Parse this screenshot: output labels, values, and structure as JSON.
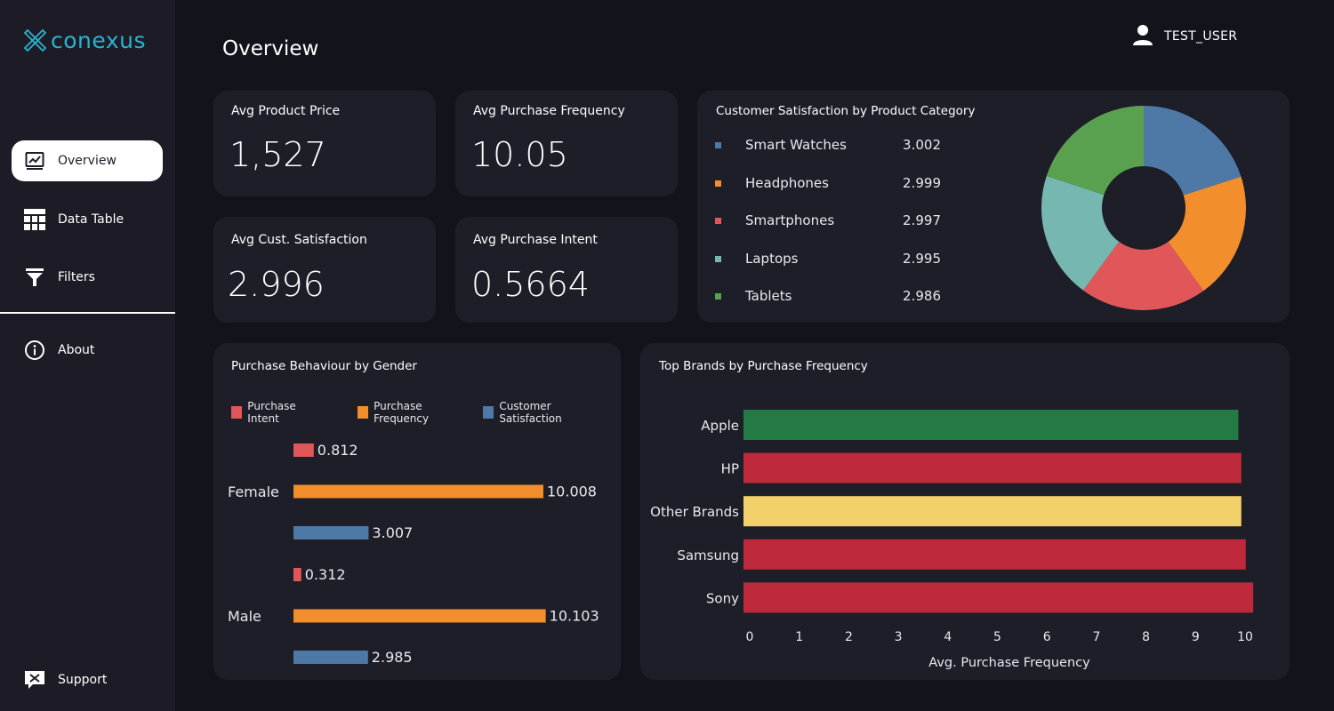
{
  "app": {
    "logo_text": "conexus",
    "user_name": "TEST_USER",
    "page_title": "Overview"
  },
  "sidebar": {
    "items": [
      {
        "label": "Overview",
        "icon": "overview-chart-icon",
        "active": true
      },
      {
        "label": "Data Table",
        "icon": "table-grid-icon",
        "active": false
      },
      {
        "label": "Filters",
        "icon": "funnel-icon",
        "active": false
      },
      {
        "label": "About",
        "icon": "info-icon",
        "active": false
      }
    ],
    "support_label": "Support"
  },
  "kpis": {
    "avg_price": {
      "label": "Avg Product Price",
      "value": "1,527"
    },
    "avg_freq": {
      "label": "Avg Purchase Frequency",
      "value": "10.05"
    },
    "avg_sat": {
      "label": "Avg Cust. Satisfaction",
      "value": "2.996"
    },
    "avg_intent": {
      "label": "Avg Purchase Intent",
      "value": "0.5664"
    }
  },
  "colors": {
    "blue": "#4e79a7",
    "orange": "#f28e2b",
    "red": "#e15759",
    "teal": "#76b7b2",
    "green": "#59a14f",
    "brand": "#2ab3cf"
  },
  "chart_data": [
    {
      "type": "pie",
      "title": "Customer Satisfaction by Product Category",
      "categories": [
        "Smart Watches",
        "Headphones",
        "Smartphones",
        "Laptops",
        "Tablets"
      ],
      "values": [
        3.002,
        2.999,
        2.997,
        2.995,
        2.986
      ],
      "value_labels": [
        "3.002",
        "2.999",
        "2.997",
        "2.995",
        "2.986"
      ],
      "colors": [
        "#4e79a7",
        "#f28e2b",
        "#e15759",
        "#76b7b2",
        "#59a14f"
      ],
      "donut": true,
      "legend": "left"
    },
    {
      "type": "bar",
      "orientation": "horizontal",
      "title": "Purchase Behaviour by Gender",
      "categories": [
        "Female",
        "Male"
      ],
      "series": [
        {
          "name": "Purchase Intent",
          "color": "#e15759",
          "values": [
            0.812,
            0.312
          ],
          "labels": [
            "0.812",
            "0.312"
          ]
        },
        {
          "name": "Purchase Frequency",
          "color": "#f28e2b",
          "values": [
            10.008,
            10.103
          ],
          "labels": [
            "10.008",
            "10.103"
          ]
        },
        {
          "name": "Customer Satisfaction",
          "color": "#4e79a7",
          "values": [
            3.007,
            2.985
          ],
          "labels": [
            "3.007",
            "2.985"
          ]
        }
      ],
      "legend": "top"
    },
    {
      "type": "bar",
      "orientation": "horizontal",
      "title": "Top Brands by Purchase Frequency",
      "categories": [
        "Apple",
        "HP",
        "Other Brands",
        "Samsung",
        "Sony"
      ],
      "values": [
        9.99,
        10.05,
        10.05,
        10.14,
        10.29
      ],
      "colors": [
        "#237a44",
        "#be293b",
        "#f2d16b",
        "#be293b",
        "#be293b"
      ],
      "xlabel": "Avg. Purchase Frequency",
      "xlim": [
        0,
        10.5
      ],
      "xticks": [
        "0",
        "1",
        "2",
        "3",
        "4",
        "5",
        "6",
        "7",
        "8",
        "9",
        "10"
      ],
      "grid": false
    }
  ]
}
